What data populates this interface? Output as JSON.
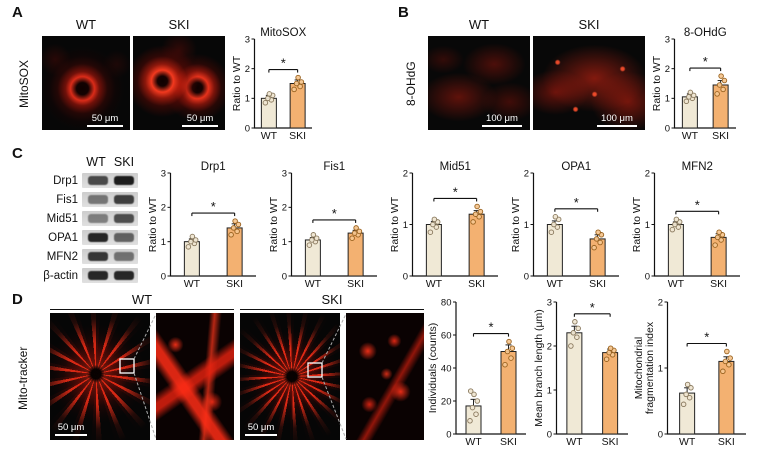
{
  "colors": {
    "wt_bar": "#f0e9d6",
    "ski_bar": "#f3b171",
    "wt_dot_fill": "#efe6d2",
    "wt_dot_stroke": "#8a7a5f",
    "ski_dot_fill": "#f6c690",
    "ski_dot_stroke": "#9a6320",
    "axis": "#111111",
    "fluor_red": "#ff2d16"
  },
  "panels": {
    "a": {
      "letter": "A",
      "side_label": "MitoSOX",
      "col_wt": "WT",
      "col_ski": "SKI",
      "scalebar_wt": "50 μm",
      "scalebar_ski": "50 μm"
    },
    "b": {
      "letter": "B",
      "side_label": "8-OHdG",
      "col_wt": "WT",
      "col_ski": "SKI",
      "scalebar_wt": "100 μm",
      "scalebar_ski": "100 μm"
    },
    "c": {
      "letter": "C",
      "lane_wt": "WT",
      "lane_ski": "SKI",
      "blot_rows": [
        {
          "label": "Drp1",
          "bands": [
            0.72,
            0.95
          ]
        },
        {
          "label": "Fis1",
          "bands": [
            0.5,
            0.78
          ]
        },
        {
          "label": "Mid51",
          "bands": [
            0.45,
            0.7
          ]
        },
        {
          "label": "OPA1",
          "bands": [
            0.9,
            0.6
          ]
        },
        {
          "label": "MFN2",
          "bands": [
            0.82,
            0.52
          ]
        },
        {
          "label": "β-actin",
          "bands": [
            0.9,
            0.9
          ]
        }
      ]
    },
    "d": {
      "letter": "D",
      "side_label": "Mito-tracker",
      "col_wt": "WT",
      "col_ski": "SKI",
      "scalebar_wt": "50 μm",
      "scalebar_ski": "50 μm"
    }
  },
  "chart_data": [
    {
      "id": "mitosox",
      "type": "bar",
      "title": "MitoSOX",
      "ylabel": "Ratio to WT",
      "ylim": [
        0,
        3
      ],
      "yticks": [
        0,
        1,
        2,
        3
      ],
      "categories": [
        "WT",
        "SKI"
      ],
      "values": [
        1.0,
        1.5
      ],
      "errors": [
        0.1,
        0.12
      ],
      "points": [
        [
          0.85,
          0.95,
          1.0,
          1.1,
          1.15
        ],
        [
          1.3,
          1.4,
          1.5,
          1.55,
          1.7
        ]
      ],
      "sig": "*"
    },
    {
      "id": "8ohdg",
      "type": "bar",
      "title": "8-OHdG",
      "ylabel": "Ratio to WT",
      "ylim": [
        0,
        3
      ],
      "yticks": [
        0,
        1,
        2,
        3
      ],
      "categories": [
        "WT",
        "SKI"
      ],
      "values": [
        1.05,
        1.45
      ],
      "errors": [
        0.1,
        0.15
      ],
      "points": [
        [
          0.9,
          1.0,
          1.05,
          1.1,
          1.2
        ],
        [
          1.15,
          1.3,
          1.45,
          1.6,
          1.75
        ]
      ],
      "sig": "*"
    },
    {
      "id": "drp1",
      "type": "bar",
      "title": "Drp1",
      "ylabel": "Ratio to WT",
      "ylim": [
        0,
        3
      ],
      "yticks": [
        0,
        1,
        2,
        3
      ],
      "categories": [
        "WT",
        "SKI"
      ],
      "values": [
        1.0,
        1.4
      ],
      "errors": [
        0.08,
        0.12
      ],
      "points": [
        [
          0.85,
          0.95,
          1.0,
          1.05,
          1.15
        ],
        [
          1.2,
          1.3,
          1.4,
          1.5,
          1.6
        ]
      ],
      "sig": "*"
    },
    {
      "id": "fis1",
      "type": "bar",
      "title": "Fis1",
      "ylabel": "Ratio to WT",
      "ylim": [
        0,
        3
      ],
      "yticks": [
        0,
        1,
        2,
        3
      ],
      "categories": [
        "WT",
        "SKI"
      ],
      "values": [
        1.05,
        1.25
      ],
      "errors": [
        0.07,
        0.08
      ],
      "points": [
        [
          0.9,
          1.0,
          1.05,
          1.1,
          1.2
        ],
        [
          1.1,
          1.2,
          1.25,
          1.3,
          1.4
        ]
      ],
      "sig": "*"
    },
    {
      "id": "mid51",
      "type": "bar",
      "title": "Mid51",
      "ylabel": "Ratio to WT",
      "ylim": [
        0,
        2
      ],
      "yticks": [
        0,
        1,
        2
      ],
      "categories": [
        "WT",
        "SKI"
      ],
      "values": [
        1.0,
        1.2
      ],
      "errors": [
        0.06,
        0.07
      ],
      "points": [
        [
          0.85,
          0.95,
          1.0,
          1.05,
          1.1
        ],
        [
          1.05,
          1.15,
          1.2,
          1.25,
          1.35
        ]
      ],
      "sig": "*"
    },
    {
      "id": "opa1",
      "type": "bar",
      "title": "OPA1",
      "ylabel": "Ratio to WT",
      "ylim": [
        0,
        2
      ],
      "yticks": [
        0,
        1,
        2
      ],
      "categories": [
        "WT",
        "SKI"
      ],
      "values": [
        1.0,
        0.72
      ],
      "errors": [
        0.07,
        0.08
      ],
      "points": [
        [
          0.85,
          0.95,
          1.0,
          1.1,
          1.15
        ],
        [
          0.55,
          0.65,
          0.72,
          0.8,
          0.85
        ]
      ],
      "sig": "*"
    },
    {
      "id": "mfn2",
      "type": "bar",
      "title": "MFN2",
      "ylabel": "Ratio to WT",
      "ylim": [
        0,
        2
      ],
      "yticks": [
        0,
        1,
        2
      ],
      "categories": [
        "WT",
        "SKI"
      ],
      "values": [
        1.0,
        0.75
      ],
      "errors": [
        0.05,
        0.07
      ],
      "points": [
        [
          0.9,
          0.95,
          1.0,
          1.05,
          1.1
        ],
        [
          0.6,
          0.7,
          0.75,
          0.8,
          0.85
        ]
      ],
      "sig": "*"
    },
    {
      "id": "individuals",
      "type": "bar",
      "title": "",
      "ylabel": "Individuals (counts)",
      "ylim": [
        0,
        80
      ],
      "yticks": [
        0,
        20,
        40,
        60,
        80
      ],
      "categories": [
        "WT",
        "SKI"
      ],
      "values": [
        17,
        50
      ],
      "errors": [
        4,
        4
      ],
      "points": [
        [
          8,
          12,
          16,
          20,
          24,
          26
        ],
        [
          42,
          46,
          50,
          52,
          56
        ]
      ],
      "sig": "*"
    },
    {
      "id": "branch_length",
      "type": "bar",
      "title": "",
      "ylabel": "Mean branch length (μm)",
      "ylim": [
        0,
        3
      ],
      "yticks": [
        0,
        1,
        2,
        3
      ],
      "categories": [
        "WT",
        "SKI"
      ],
      "values": [
        2.3,
        1.85
      ],
      "errors": [
        0.15,
        0.08
      ],
      "points": [
        [
          2.0,
          2.2,
          2.3,
          2.4,
          2.55
        ],
        [
          1.7,
          1.8,
          1.85,
          1.9,
          1.95
        ]
      ],
      "sig": "*"
    },
    {
      "id": "fragmentation_index",
      "type": "bar",
      "title": "",
      "ylabel": [
        "Mitochondrial",
        "fragmentation index"
      ],
      "ylim": [
        0,
        2
      ],
      "yticks": [
        0,
        1,
        2
      ],
      "categories": [
        "WT",
        "SKI"
      ],
      "values": [
        0.62,
        1.1
      ],
      "errors": [
        0.08,
        0.07
      ],
      "points": [
        [
          0.45,
          0.55,
          0.6,
          0.7,
          0.75
        ],
        [
          0.95,
          1.05,
          1.1,
          1.15,
          1.25
        ]
      ],
      "sig": "*"
    }
  ]
}
